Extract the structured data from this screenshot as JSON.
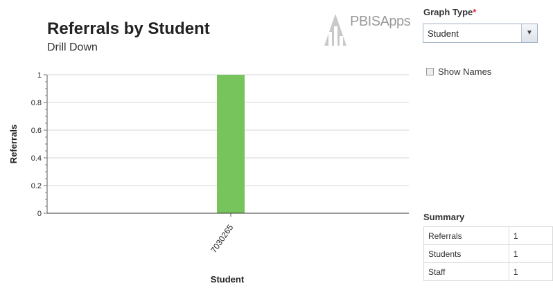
{
  "header": {
    "title": "Referrals by Student",
    "subtitle": "Drill Down",
    "logo_text": "PBISApps"
  },
  "controls": {
    "graph_type_label": "Graph Type",
    "graph_type_required": "*",
    "graph_type_value": "Student",
    "show_names_label": "Show Names"
  },
  "summary": {
    "title": "Summary",
    "rows": [
      {
        "label": "Referrals",
        "value": "1"
      },
      {
        "label": "Students",
        "value": "1"
      },
      {
        "label": "Staff",
        "value": "1"
      }
    ]
  },
  "chart_data": {
    "type": "bar",
    "title": "Referrals by Student",
    "subtitle": "Drill Down",
    "xlabel": "Student",
    "ylabel": "Referrals",
    "categories": [
      "7030265"
    ],
    "values": [
      1
    ],
    "ylim": [
      0,
      1
    ],
    "yticks": [
      0,
      0.2,
      0.4,
      0.6,
      0.8,
      1
    ],
    "ytick_labels": [
      "0",
      "0.2",
      "0.4",
      "0.6",
      "0.8",
      "1"
    ],
    "grid": true,
    "bar_color": "#77c35c"
  }
}
